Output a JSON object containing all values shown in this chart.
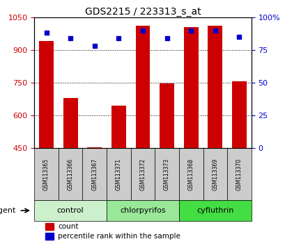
{
  "title": "GDS2215 / 223313_s_at",
  "samples": [
    "GSM113365",
    "GSM113366",
    "GSM113367",
    "GSM113371",
    "GSM113372",
    "GSM113373",
    "GSM113368",
    "GSM113369",
    "GSM113370"
  ],
  "counts": [
    940,
    680,
    453,
    643,
    1010,
    748,
    1005,
    1010,
    755
  ],
  "percentiles": [
    88,
    84,
    78,
    84,
    90,
    84,
    90,
    90,
    85
  ],
  "groups": [
    {
      "label": "control",
      "indices": [
        0,
        1,
        2
      ],
      "color": "#ccf0cc"
    },
    {
      "label": "chlorpyrifos",
      "indices": [
        3,
        4,
        5
      ],
      "color": "#99e899"
    },
    {
      "label": "cyfluthrin",
      "indices": [
        6,
        7,
        8
      ],
      "color": "#44dd44"
    }
  ],
  "ylim_left": [
    450,
    1050
  ],
  "ylim_right": [
    0,
    100
  ],
  "yticks_left": [
    450,
    600,
    750,
    900,
    1050
  ],
  "yticks_right": [
    0,
    25,
    50,
    75,
    100
  ],
  "bar_color": "#cc0000",
  "dot_color": "#0000cc",
  "bar_bottom": 450,
  "background_color": "#ffffff",
  "tick_label_color_left": "#cc0000",
  "tick_label_color_right": "#0000cc",
  "legend_bar_label": "count",
  "legend_dot_label": "percentile rank within the sample",
  "agent_label": "agent",
  "sample_box_color": "#cccccc"
}
